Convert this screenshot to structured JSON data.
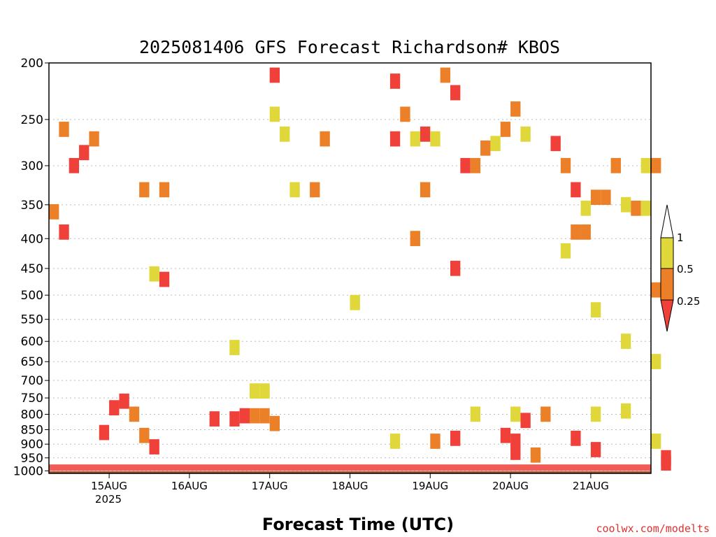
{
  "chart_data": {
    "type": "heatmap",
    "title": "2025081406 GFS Forecast Richardson# KBOS",
    "xlabel": "Forecast Time (UTC)",
    "credit": "coolwx.com/modelts",
    "y_scale": "log",
    "y_direction": "inverted",
    "ylim": [
      1010,
      200
    ],
    "y_ticks": [
      200,
      250,
      300,
      350,
      400,
      450,
      500,
      550,
      600,
      650,
      700,
      750,
      800,
      850,
      900,
      950,
      1000
    ],
    "y_tick_labels": [
      "200",
      "250",
      "300",
      "350",
      "400",
      "450",
      "500",
      "550",
      "600",
      "650",
      "700",
      "750",
      "800",
      "850",
      "900",
      "950",
      "1000"
    ],
    "x_tick_labels": [
      "15AUG",
      "16AUG",
      "17AUG",
      "18AUG",
      "19AUG",
      "20AUG",
      "21AUG"
    ],
    "x_start_label": "2025081406",
    "x_year_label": "2025",
    "grid": true,
    "legend": {
      "position": "right",
      "levels": [
        "1",
        "0.5",
        "0.25"
      ],
      "classes": [
        {
          "name": "Ri > 1",
          "color": "#ffffff"
        },
        {
          "name": "0.5 – 1",
          "color": "#e0d83a"
        },
        {
          "name": "0.25 – 0.5",
          "color": "#ec8028"
        },
        {
          "name": "< 0.25",
          "color": "#f0403a"
        }
      ]
    },
    "surface_color": "#a0522d",
    "colors": {
      "yellow": "#e0d83a",
      "orange": "#ec8028",
      "red": "#f0403a"
    },
    "cells": [
      {
        "t": "2025-08-16 18:00",
        "p": 805,
        "v": "orange"
      },
      {
        "t": "2025-08-16 21:00",
        "p": 805,
        "v": "orange"
      },
      {
        "t": "2025-08-17 00:00",
        "p": 830,
        "v": "orange"
      },
      {
        "t": "2025-08-16 15:00",
        "p": 805,
        "v": "red"
      },
      {
        "t": "2025-08-16 12:00",
        "p": 815,
        "v": "red"
      },
      {
        "t": "2025-08-16 06:00",
        "p": 815,
        "v": "red"
      },
      {
        "t": "2025-08-16 21:00",
        "p": 730,
        "v": "yellow"
      },
      {
        "t": "2025-08-16 18:00",
        "p": 730,
        "v": "yellow"
      },
      {
        "t": "2025-08-15 00:00",
        "p": 780,
        "v": "red"
      },
      {
        "t": "2025-08-15 03:00",
        "p": 760,
        "v": "red"
      },
      {
        "t": "2025-08-15 06:00",
        "p": 800,
        "v": "orange"
      },
      {
        "t": "2025-08-15 09:00",
        "p": 870,
        "v": "orange"
      },
      {
        "t": "2025-08-15 12:00",
        "p": 910,
        "v": "red"
      },
      {
        "t": "2025-08-14 21:00",
        "p": 860,
        "v": "red"
      },
      {
        "t": "2025-08-19 06:00",
        "p": 880,
        "v": "red"
      },
      {
        "t": "2025-08-19 00:00",
        "p": 890,
        "v": "orange"
      },
      {
        "t": "2025-08-18 12:00",
        "p": 890,
        "v": "yellow"
      },
      {
        "t": "2025-08-19 21:00",
        "p": 870,
        "v": "red"
      },
      {
        "t": "2025-08-20 00:00",
        "p": 890,
        "v": "red"
      },
      {
        "t": "2025-08-20 03:00",
        "p": 820,
        "v": "red"
      },
      {
        "t": "2025-08-20 09:00",
        "p": 800,
        "v": "orange"
      },
      {
        "t": "2025-08-20 00:00",
        "p": 930,
        "v": "red"
      },
      {
        "t": "2025-08-20 06:00",
        "p": 940,
        "v": "orange"
      },
      {
        "t": "2025-08-21 00:00",
        "p": 920,
        "v": "red"
      },
      {
        "t": "2025-08-19 21:00",
        "p": 260,
        "v": "orange"
      },
      {
        "t": "2025-08-20 00:00",
        "p": 240,
        "v": "orange"
      },
      {
        "t": "2025-08-20 03:00",
        "p": 265,
        "v": "yellow"
      },
      {
        "t": "2025-08-19 18:00",
        "p": 275,
        "v": "yellow"
      },
      {
        "t": "2025-08-19 15:00",
        "p": 280,
        "v": "orange"
      },
      {
        "t": "2025-08-19 09:00",
        "p": 300,
        "v": "red"
      },
      {
        "t": "2025-08-19 12:00",
        "p": 300,
        "v": "orange"
      },
      {
        "t": "2025-08-20 12:00",
        "p": 275,
        "v": "red"
      },
      {
        "t": "2025-08-20 15:00",
        "p": 300,
        "v": "orange"
      },
      {
        "t": "2025-08-20 18:00",
        "p": 330,
        "v": "red"
      },
      {
        "t": "2025-08-21 00:00",
        "p": 340,
        "v": "orange"
      },
      {
        "t": "2025-08-21 03:00",
        "p": 340,
        "v": "orange"
      },
      {
        "t": "2025-08-20 21:00",
        "p": 390,
        "v": "orange"
      },
      {
        "t": "2025-08-20 18:00",
        "p": 390,
        "v": "orange"
      },
      {
        "t": "2025-08-20 21:00",
        "p": 355,
        "v": "yellow"
      },
      {
        "t": "2025-08-20 15:00",
        "p": 420,
        "v": "yellow"
      },
      {
        "t": "2025-08-21 06:00",
        "p": 300,
        "v": "orange"
      },
      {
        "t": "2025-08-21 09:00",
        "p": 350,
        "v": "yellow"
      },
      {
        "t": "2025-08-21 15:00",
        "p": 300,
        "v": "yellow"
      },
      {
        "t": "2025-08-21 18:00",
        "p": 300,
        "v": "orange"
      },
      {
        "t": "2025-08-21 12:00",
        "p": 355,
        "v": "orange"
      },
      {
        "t": "2025-08-21 15:00",
        "p": 355,
        "v": "yellow"
      },
      {
        "t": "2025-08-21 18:00",
        "p": 490,
        "v": "orange"
      },
      {
        "t": "2025-08-21 18:00",
        "p": 890,
        "v": "yellow"
      },
      {
        "t": "2025-08-21 21:00",
        "p": 950,
        "v": "red"
      },
      {
        "t": "2025-08-21 21:00",
        "p": 970,
        "v": "red"
      },
      {
        "t": "2025-08-14 09:00",
        "p": 260,
        "v": "orange"
      },
      {
        "t": "2025-08-14 12:00",
        "p": 300,
        "v": "red"
      },
      {
        "t": "2025-08-14 15:00",
        "p": 285,
        "v": "red"
      },
      {
        "t": "2025-08-14 18:00",
        "p": 270,
        "v": "orange"
      },
      {
        "t": "2025-08-14 06:00",
        "p": 360,
        "v": "orange"
      },
      {
        "t": "2025-08-14 09:00",
        "p": 390,
        "v": "red"
      },
      {
        "t": "2025-08-15 09:00",
        "p": 330,
        "v": "orange"
      },
      {
        "t": "2025-08-15 15:00",
        "p": 330,
        "v": "orange"
      },
      {
        "t": "2025-08-15 15:00",
        "p": 470,
        "v": "red"
      },
      {
        "t": "2025-08-15 12:00",
        "p": 460,
        "v": "yellow"
      },
      {
        "t": "2025-08-16 12:00",
        "p": 615,
        "v": "yellow"
      },
      {
        "t": "2025-08-17 00:00",
        "p": 210,
        "v": "red"
      },
      {
        "t": "2025-08-17 00:00",
        "p": 245,
        "v": "yellow"
      },
      {
        "t": "2025-08-17 03:00",
        "p": 265,
        "v": "yellow"
      },
      {
        "t": "2025-08-17 06:00",
        "p": 330,
        "v": "yellow"
      },
      {
        "t": "2025-08-17 12:00",
        "p": 330,
        "v": "orange"
      },
      {
        "t": "2025-08-17 15:00",
        "p": 270,
        "v": "orange"
      },
      {
        "t": "2025-08-18 12:00",
        "p": 215,
        "v": "red"
      },
      {
        "t": "2025-08-18 12:00",
        "p": 270,
        "v": "red"
      },
      {
        "t": "2025-08-18 15:00",
        "p": 245,
        "v": "orange"
      },
      {
        "t": "2025-08-18 18:00",
        "p": 270,
        "v": "yellow"
      },
      {
        "t": "2025-08-18 21:00",
        "p": 265,
        "v": "red"
      },
      {
        "t": "2025-08-19 03:00",
        "p": 210,
        "v": "orange"
      },
      {
        "t": "2025-08-19 06:00",
        "p": 225,
        "v": "red"
      },
      {
        "t": "2025-08-19 00:00",
        "p": 270,
        "v": "yellow"
      },
      {
        "t": "2025-08-18 21:00",
        "p": 330,
        "v": "orange"
      },
      {
        "t": "2025-08-18 18:00",
        "p": 400,
        "v": "orange"
      },
      {
        "t": "2025-08-19 06:00",
        "p": 450,
        "v": "red"
      },
      {
        "t": "2025-08-18 00:00",
        "p": 515,
        "v": "yellow"
      },
      {
        "t": "2025-08-21 00:00",
        "p": 530,
        "v": "yellow"
      },
      {
        "t": "2025-08-21 09:00",
        "p": 600,
        "v": "yellow"
      },
      {
        "t": "2025-08-21 18:00",
        "p": 650,
        "v": "yellow"
      },
      {
        "t": "2025-08-20 00:00",
        "p": 800,
        "v": "yellow"
      },
      {
        "t": "2025-08-19 12:00",
        "p": 800,
        "v": "yellow"
      },
      {
        "t": "2025-08-21 00:00",
        "p": 800,
        "v": "yellow"
      },
      {
        "t": "2025-08-21 09:00",
        "p": 790,
        "v": "yellow"
      },
      {
        "t": "2025-08-20 18:00",
        "p": 880,
        "v": "red"
      }
    ]
  }
}
